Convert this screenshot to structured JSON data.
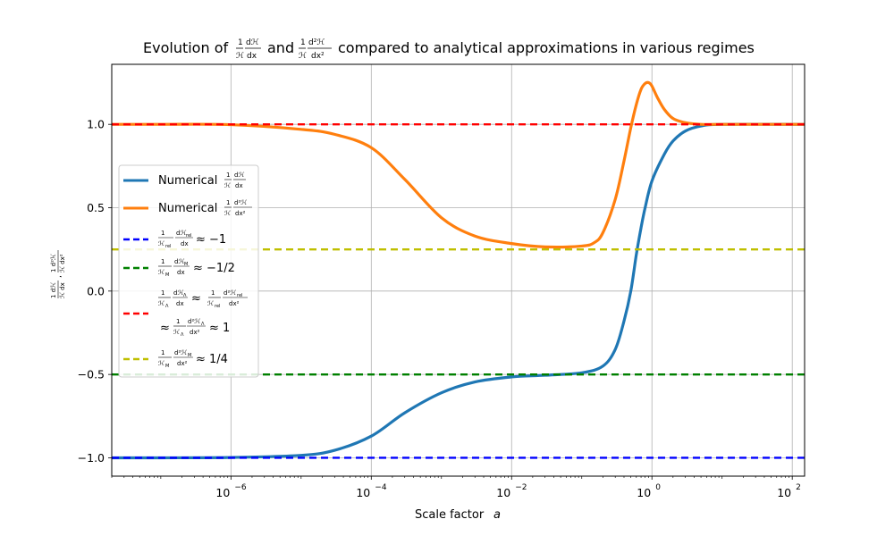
{
  "chart_data": {
    "type": "line",
    "title": {
      "prefix": "Evolution of",
      "f1": {
        "num": "1",
        "den": "ℋ",
        "num2": "dℋ",
        "den2": "dx"
      },
      "mid": "and",
      "f2": {
        "num": "1",
        "den": "ℋ",
        "num2": "d²ℋ",
        "den2": "dx²"
      },
      "suffix": "compared to analytical approximations in various regimes"
    },
    "xlabel": "Scale factor",
    "xlabel_var": "a",
    "ylabel": {
      "a": "1 dℋ",
      "b": "ℋ dx",
      "sep": ",",
      "c": "1 d²ℋ",
      "d": "ℋ dx²"
    },
    "xscale": "log",
    "xlim": [
      2e-08,
      150
    ],
    "ylim": [
      -1.11,
      1.36
    ],
    "xticks": [
      {
        "value": 1e-06,
        "base": "10",
        "exp": "−6"
      },
      {
        "value": 0.0001,
        "base": "10",
        "exp": "−4"
      },
      {
        "value": 0.01,
        "base": "10",
        "exp": "−2"
      },
      {
        "value": 1,
        "base": "10",
        "exp": "0"
      },
      {
        "value": 100,
        "base": "10",
        "exp": "2"
      }
    ],
    "yticks": [
      {
        "value": -1.0,
        "label": "−1.0"
      },
      {
        "value": -0.5,
        "label": "−0.5"
      },
      {
        "value": 0.0,
        "label": "0.0"
      },
      {
        "value": 0.5,
        "label": "0.5"
      },
      {
        "value": 1.0,
        "label": "1.0"
      }
    ],
    "grid": true,
    "legend_placement": "center-left",
    "series": [
      {
        "key": "num1",
        "color": "#1f77b4",
        "style": "solid",
        "x": [
          2e-08,
          1e-07,
          1e-06,
          1e-05,
          3e-05,
          0.0001,
          0.0003,
          0.001,
          0.003,
          0.01,
          0.03,
          0.1,
          0.2,
          0.3,
          0.4,
          0.5,
          0.6,
          0.7,
          0.8,
          1.0,
          1.5,
          2.0,
          3.0,
          5.0,
          10,
          150
        ],
        "y": [
          -1.0,
          -1.0,
          -0.998,
          -0.985,
          -0.955,
          -0.87,
          -0.73,
          -0.61,
          -0.545,
          -0.515,
          -0.505,
          -0.49,
          -0.45,
          -0.35,
          -0.18,
          0.0,
          0.22,
          0.38,
          0.5,
          0.66,
          0.82,
          0.9,
          0.96,
          0.99,
          1.0,
          1.0
        ]
      },
      {
        "key": "num2",
        "color": "#ff7f0e",
        "style": "solid",
        "x": [
          2e-08,
          1e-07,
          1e-06,
          1e-05,
          3e-05,
          0.0001,
          0.0003,
          0.001,
          0.003,
          0.01,
          0.03,
          0.1,
          0.15,
          0.2,
          0.3,
          0.4,
          0.5,
          0.6,
          0.7,
          0.8,
          0.9,
          1.0,
          1.2,
          1.5,
          2.0,
          3.0,
          5.0,
          10,
          150
        ],
        "y": [
          1.0,
          1.0,
          0.998,
          0.97,
          0.94,
          0.86,
          0.67,
          0.44,
          0.33,
          0.285,
          0.265,
          0.27,
          0.29,
          0.35,
          0.55,
          0.78,
          0.98,
          1.12,
          1.21,
          1.245,
          1.25,
          1.23,
          1.16,
          1.09,
          1.035,
          1.01,
          1.0,
          1.0,
          1.0
        ]
      },
      {
        "key": "rel",
        "color": "#0000ff",
        "style": "dashed",
        "x": [
          2e-08,
          150
        ],
        "y": [
          -1,
          -1
        ]
      },
      {
        "key": "mat",
        "color": "#008000",
        "style": "dashed",
        "x": [
          2e-08,
          150
        ],
        "y": [
          -0.5,
          -0.5
        ]
      },
      {
        "key": "lam",
        "color": "#ff0000",
        "style": "dashed",
        "x": [
          2e-08,
          150
        ],
        "y": [
          1,
          1
        ]
      },
      {
        "key": "mat2",
        "color": "#bfbf00",
        "style": "dashed",
        "x": [
          2e-08,
          150
        ],
        "y": [
          0.25,
          0.25
        ]
      }
    ],
    "legend": {
      "item1": {
        "word": "Numerical",
        "num": "1",
        "den": "ℋ",
        "num2": "dℋ",
        "den2": "dx"
      },
      "item2": {
        "word": "Numerical",
        "num": "1",
        "den": "ℋ",
        "num2": "d²ℋ",
        "den2": "dx²"
      },
      "item3": {
        "num": "1",
        "den": "ℋ",
        "densub": "rel",
        "num2": "dℋ",
        "num2sub": "rel",
        "den2": "dx",
        "rel": "≈ −1"
      },
      "item4": {
        "num": "1",
        "den": "ℋ",
        "densub": "M",
        "num2": "dℋ",
        "num2sub": "M",
        "den2": "dx",
        "rel": "≈ −1/2"
      },
      "item5": {
        "num": "1",
        "den": "ℋ",
        "densub": "Λ",
        "num2": "dℋ",
        "num2sub": "Λ",
        "den2": "dx",
        "rel": "≈",
        "num3": "1",
        "den3": "ℋ",
        "den3sub": "rel",
        "num4": "d²ℋ",
        "num4sub": "rel",
        "den4": "dx²",
        "line2_rel": "≈",
        "num5": "1",
        "den5": "ℋ",
        "den5sub": "Λ",
        "num6": "d²ℋ",
        "num6sub": "Λ",
        "den6": "dx²",
        "rel2": "≈ 1"
      },
      "item6": {
        "num": "1",
        "den": "ℋ",
        "densub": "M",
        "num2": "d²ℋ",
        "num2sub": "M",
        "den2": "dx²",
        "rel": "≈ 1/4"
      }
    }
  }
}
